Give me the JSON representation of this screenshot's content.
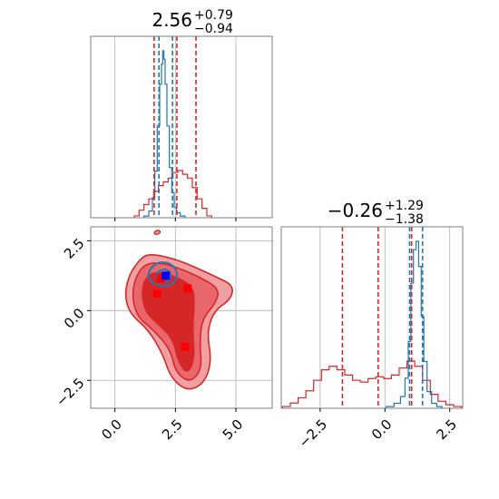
{
  "chart_data": {
    "type": "corner",
    "colors": {
      "red": "#d62728",
      "blue": "#1f77b4",
      "red_fill_light": "#f0a0a3",
      "red_fill_dark": "#d62728",
      "marker_blue": "#0000ff",
      "marker_red": "#ff0000",
      "grid": "#b0b0b0"
    },
    "params": [
      {
        "id": "p1",
        "title": {
          "value": "2.56",
          "upper": "+0.79",
          "lower": "−0.94"
        },
        "xlim": [
          -1.0,
          6.5
        ],
        "xticks": [
          0.0,
          2.5,
          5.0
        ],
        "xtick_labels": [
          "0.0",
          "2.5",
          "5.0"
        ],
        "red_quantiles": [
          1.62,
          2.56,
          3.35
        ],
        "blue_quantiles": [
          1.82,
          2.03,
          2.38
        ],
        "red_hist": {
          "x": [
            0.9,
            1.1,
            1.3,
            1.5,
            1.7,
            1.9,
            2.1,
            2.3,
            2.5,
            2.7,
            2.9,
            3.1,
            3.3,
            3.5,
            3.7,
            3.9
          ],
          "y": [
            0.01,
            0.04,
            0.07,
            0.1,
            0.14,
            0.17,
            0.19,
            0.21,
            0.24,
            0.25,
            0.23,
            0.21,
            0.16,
            0.1,
            0.05,
            0.01
          ]
        },
        "blue_hist": {
          "x": [
            1.3,
            1.5,
            1.6,
            1.7,
            1.8,
            1.9,
            1.95,
            2.0,
            2.05,
            2.1,
            2.2,
            2.3,
            2.4,
            2.5,
            2.6,
            2.8
          ],
          "y": [
            0.01,
            0.04,
            0.12,
            0.28,
            0.55,
            0.8,
            0.92,
            1.0,
            0.95,
            0.8,
            0.55,
            0.3,
            0.15,
            0.06,
            0.03,
            0.01
          ]
        }
      },
      {
        "id": "p2",
        "title": {
          "value": "−0.26",
          "upper": "+1.29",
          "lower": "−1.38"
        },
        "xlim": [
          -4.0,
          3.0
        ],
        "xticks": [
          -2.5,
          0.0,
          2.5
        ],
        "xtick_labels": [
          "−2.5",
          "0.0",
          "2.5"
        ],
        "red_quantiles": [
          -1.64,
          -0.26,
          1.03
        ],
        "blue_quantiles": [
          0.95,
          1.15,
          1.45
        ],
        "red_hist": {
          "x": [
            -3.8,
            -3.5,
            -3.2,
            -2.9,
            -2.6,
            -2.3,
            -2.0,
            -1.7,
            -1.4,
            -1.1,
            -0.8,
            -0.5,
            -0.2,
            0.1,
            0.4,
            0.7,
            1.0,
            1.3,
            1.6,
            1.9,
            2.2,
            2.5,
            2.8
          ],
          "y": [
            0.01,
            0.03,
            0.06,
            0.1,
            0.16,
            0.22,
            0.24,
            0.22,
            0.19,
            0.16,
            0.15,
            0.17,
            0.18,
            0.17,
            0.19,
            0.23,
            0.27,
            0.24,
            0.16,
            0.08,
            0.04,
            0.02,
            0.01
          ]
        },
        "blue_hist": {
          "x": [
            0.2,
            0.5,
            0.7,
            0.85,
            0.95,
            1.05,
            1.15,
            1.25,
            1.35,
            1.45,
            1.55,
            1.7,
            1.9,
            2.1
          ],
          "y": [
            0.01,
            0.03,
            0.07,
            0.18,
            0.4,
            0.75,
            0.95,
            1.0,
            0.85,
            0.55,
            0.28,
            0.1,
            0.03,
            0.01
          ]
        }
      }
    ],
    "joint": {
      "x_param": "p1",
      "y_param": "p2",
      "ylim": [
        -3.5,
        3.0
      ],
      "yticks": [
        -2.5,
        0.0,
        2.5
      ],
      "ytick_labels": [
        "−2.5",
        "0.0",
        "2.5"
      ],
      "red_contour_outer": [
        [
          1.3,
          2.0
        ],
        [
          1.7,
          2.0
        ],
        [
          2.2,
          1.9
        ],
        [
          2.6,
          1.8
        ],
        [
          3.2,
          1.6
        ],
        [
          4.2,
          1.2
        ],
        [
          4.9,
          0.9
        ],
        [
          4.8,
          0.4
        ],
        [
          4.1,
          0.0
        ],
        [
          3.8,
          -0.8
        ],
        [
          4.0,
          -1.8
        ],
        [
          3.7,
          -2.6
        ],
        [
          3.0,
          -2.9
        ],
        [
          2.3,
          -2.4
        ],
        [
          2.0,
          -1.6
        ],
        [
          1.4,
          -0.7
        ],
        [
          0.6,
          -0.1
        ],
        [
          0.4,
          0.6
        ],
        [
          0.6,
          1.3
        ],
        [
          1.0,
          1.8
        ]
      ],
      "red_contour_mid": [
        [
          1.3,
          1.7
        ],
        [
          2.0,
          1.7
        ],
        [
          2.7,
          1.5
        ],
        [
          3.5,
          1.2
        ],
        [
          4.3,
          0.8
        ],
        [
          4.2,
          0.3
        ],
        [
          3.6,
          -0.3
        ],
        [
          3.5,
          -1.2
        ],
        [
          3.6,
          -2.1
        ],
        [
          3.1,
          -2.6
        ],
        [
          2.5,
          -2.2
        ],
        [
          2.3,
          -1.4
        ],
        [
          1.6,
          -0.7
        ],
        [
          0.9,
          -0.2
        ],
        [
          0.7,
          0.6
        ],
        [
          0.9,
          1.3
        ]
      ],
      "red_contour_inner": [
        [
          1.5,
          1.4
        ],
        [
          2.3,
          1.3
        ],
        [
          3.2,
          0.9
        ],
        [
          3.3,
          0.3
        ],
        [
          3.2,
          -0.6
        ],
        [
          3.3,
          -1.7
        ],
        [
          3.0,
          -2.3
        ],
        [
          2.6,
          -1.8
        ],
        [
          2.4,
          -1.0
        ],
        [
          1.8,
          -0.5
        ],
        [
          1.2,
          0.0
        ],
        [
          1.1,
          0.9
        ]
      ],
      "blue_contour_outer": [
        [
          1.45,
          1.5
        ],
        [
          1.8,
          1.75
        ],
        [
          2.3,
          1.7
        ],
        [
          2.6,
          1.4
        ],
        [
          2.5,
          1.0
        ],
        [
          2.1,
          0.85
        ],
        [
          1.6,
          0.95
        ],
        [
          1.35,
          1.2
        ]
      ],
      "blue_contour_inner": [
        [
          1.7,
          1.35
        ],
        [
          2.0,
          1.5
        ],
        [
          2.3,
          1.4
        ],
        [
          2.3,
          1.1
        ],
        [
          2.0,
          1.0
        ],
        [
          1.75,
          1.1
        ]
      ],
      "blue_square": [
        2.1,
        1.25
      ],
      "red_squares": [
        [
          1.75,
          0.6
        ],
        [
          3.0,
          0.8
        ],
        [
          2.9,
          -1.3
        ],
        [
          1.9,
          1.15
        ]
      ],
      "outlier_contour": [
        [
          1.6,
          2.8
        ],
        [
          1.8,
          2.9
        ],
        [
          1.9,
          2.8
        ],
        [
          1.7,
          2.7
        ]
      ]
    }
  }
}
